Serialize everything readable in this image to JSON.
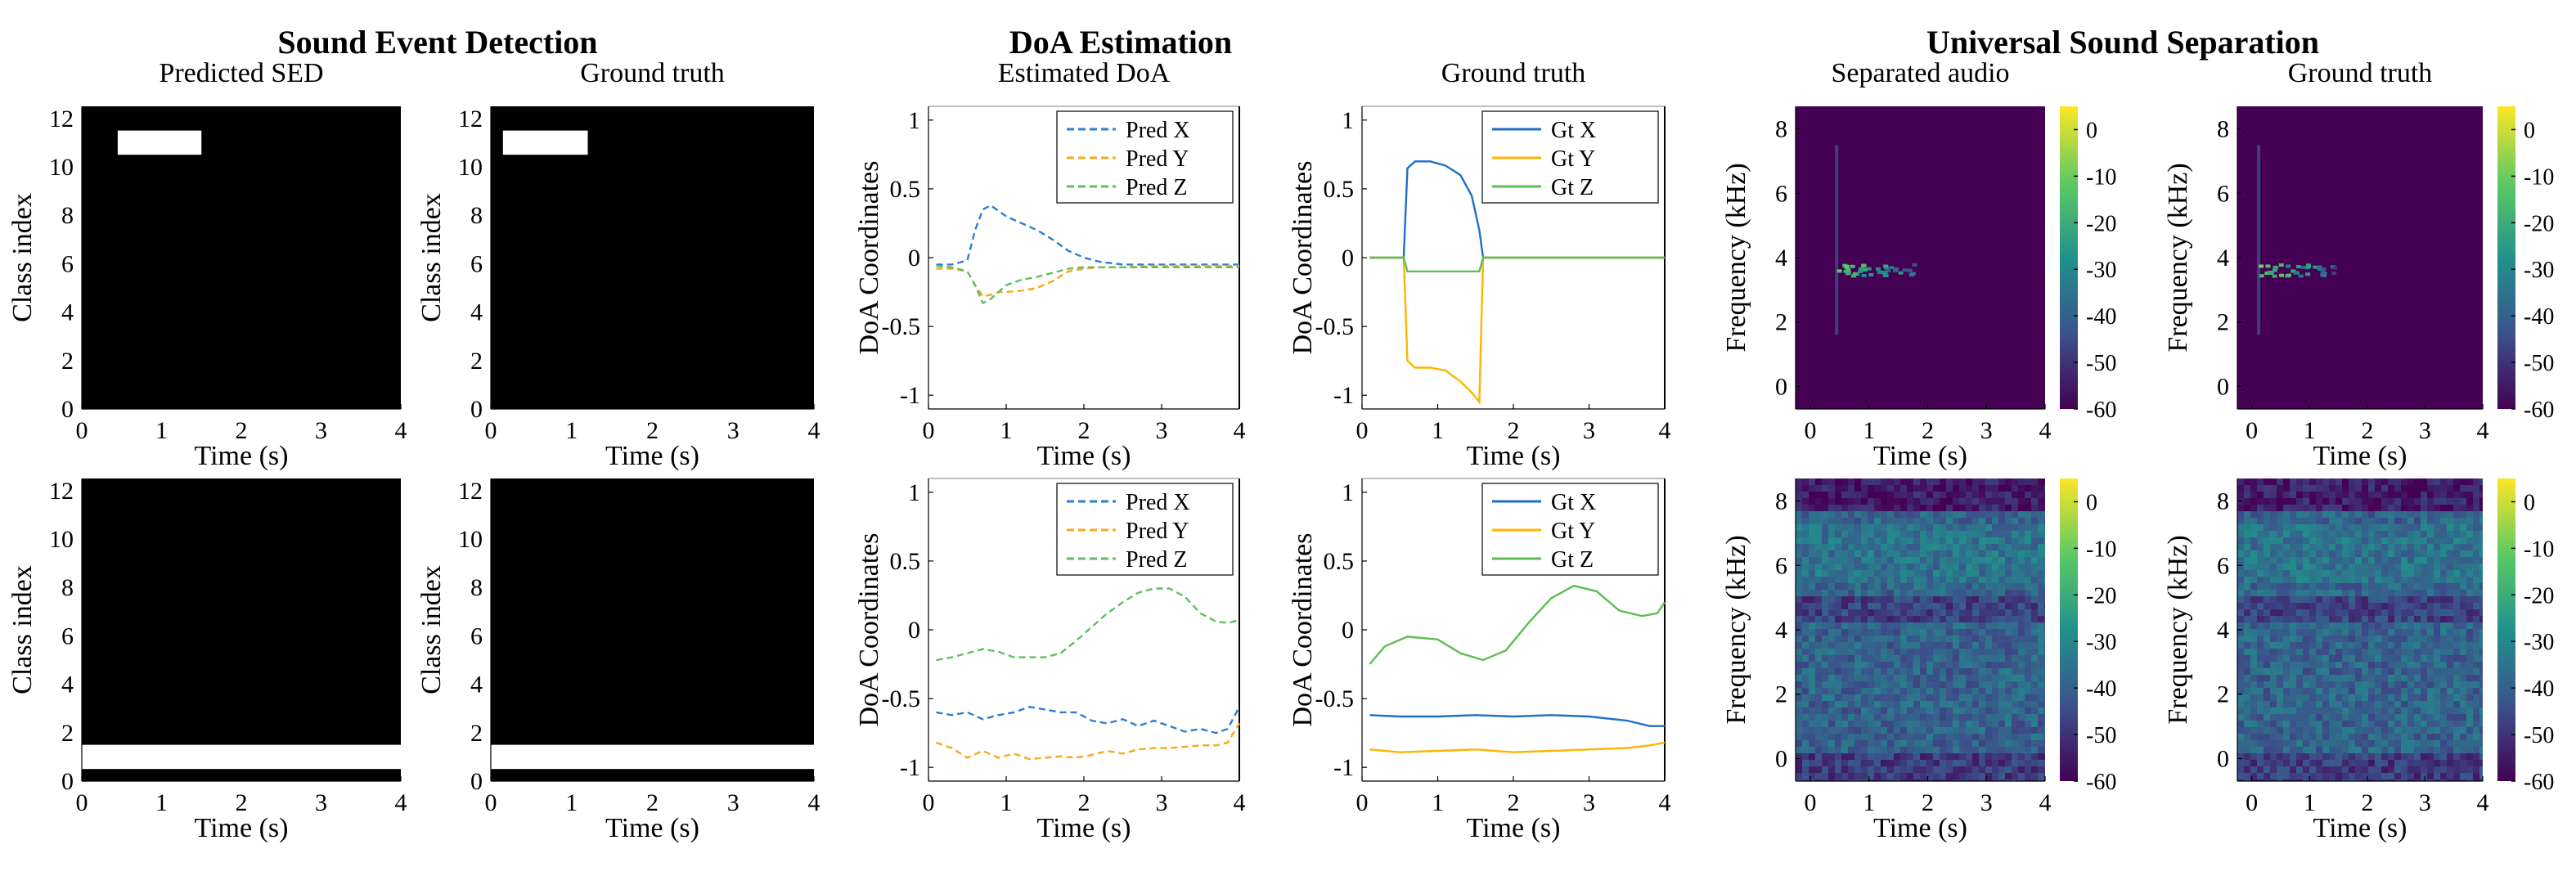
{
  "section_titles": [
    "Sound Event Detection",
    "DoA Estimation",
    "Universal Sound Separation"
  ],
  "colors": {
    "x": "#2e7dd1",
    "y": "#f7a81b",
    "z": "#5fbf5f",
    "gt_x": "#1f6fc5",
    "gt_y": "#ffb400",
    "gt_z": "#5cbf52",
    "colormap": [
      "#440154",
      "#3b528b",
      "#21918c",
      "#5ec962",
      "#fde725"
    ]
  },
  "chart_data": [
    {
      "type": "heatmap",
      "title": "Predicted SED",
      "xlabel": "Time (s)",
      "ylabel": "Class index",
      "xlim": [
        0,
        4
      ],
      "ylim": [
        0,
        12.5
      ],
      "xticks": [
        0,
        1,
        2,
        3,
        4
      ],
      "yticks": [
        0,
        2,
        4,
        6,
        8,
        10,
        12
      ],
      "background": "black",
      "active_color": "white",
      "events": [
        {
          "class": 11,
          "start": 0.45,
          "end": 1.5
        }
      ]
    },
    {
      "type": "heatmap",
      "title": "Ground truth",
      "xlabel": "Time (s)",
      "ylabel": "Class index",
      "xlim": [
        0,
        4
      ],
      "ylim": [
        0,
        12.5
      ],
      "xticks": [
        0,
        1,
        2,
        3,
        4
      ],
      "yticks": [
        0,
        2,
        4,
        6,
        8,
        10,
        12
      ],
      "background": "black",
      "active_color": "white",
      "events": [
        {
          "class": 11,
          "start": 0.15,
          "end": 1.2
        }
      ]
    },
    {
      "type": "line",
      "title": "Estimated DoA",
      "xlabel": "Time (s)",
      "ylabel": "DoA Coordinates",
      "xlim": [
        0,
        4
      ],
      "ylim": [
        -1.1,
        1.1
      ],
      "xticks": [
        0,
        1,
        2,
        3,
        4
      ],
      "yticks": [
        -1,
        -0.5,
        0,
        0.5,
        1
      ],
      "ytick_labels": [
        "-1",
        "-0.5",
        "0",
        "0.5",
        "1"
      ],
      "legend_position": "top-right",
      "series": [
        {
          "name": "Pred X",
          "dash": "dashed",
          "x": [
            0.1,
            0.3,
            0.5,
            0.6,
            0.7,
            0.8,
            0.9,
            1.0,
            1.2,
            1.4,
            1.6,
            1.8,
            2.0,
            2.2,
            2.5,
            3.0,
            3.5,
            4.0
          ],
          "y": [
            -0.05,
            -0.05,
            -0.02,
            0.2,
            0.35,
            0.38,
            0.34,
            0.3,
            0.25,
            0.2,
            0.13,
            0.05,
            0.0,
            -0.03,
            -0.05,
            -0.05,
            -0.05,
            -0.05
          ]
        },
        {
          "name": "Pred Y",
          "dash": "dashed",
          "x": [
            0.1,
            0.3,
            0.5,
            0.6,
            0.7,
            0.8,
            0.9,
            1.0,
            1.2,
            1.4,
            1.6,
            1.8,
            2.0,
            2.2,
            2.5,
            3.0,
            3.5,
            4.0
          ],
          "y": [
            -0.08,
            -0.08,
            -0.1,
            -0.2,
            -0.28,
            -0.27,
            -0.25,
            -0.25,
            -0.24,
            -0.22,
            -0.17,
            -0.1,
            -0.08,
            -0.07,
            -0.07,
            -0.06,
            -0.06,
            -0.06
          ]
        },
        {
          "name": "Pred Z",
          "dash": "dashed",
          "x": [
            0.1,
            0.3,
            0.5,
            0.6,
            0.7,
            0.8,
            0.9,
            1.0,
            1.2,
            1.4,
            1.6,
            1.8,
            2.0,
            2.2,
            2.5,
            3.0,
            3.5,
            4.0
          ],
          "y": [
            -0.06,
            -0.07,
            -0.1,
            -0.2,
            -0.33,
            -0.3,
            -0.25,
            -0.2,
            -0.16,
            -0.14,
            -0.11,
            -0.08,
            -0.07,
            -0.07,
            -0.07,
            -0.07,
            -0.07,
            -0.07
          ]
        }
      ]
    },
    {
      "type": "line",
      "title": "Ground truth",
      "xlabel": "Time (s)",
      "ylabel": "DoA Coordinates",
      "xlim": [
        0,
        4
      ],
      "ylim": [
        -1.1,
        1.1
      ],
      "xticks": [
        0,
        1,
        2,
        3,
        4
      ],
      "yticks": [
        -1,
        -0.5,
        0,
        0.5,
        1
      ],
      "ytick_labels": [
        "-1",
        "-0.5",
        "0",
        "0.5",
        "1"
      ],
      "legend_position": "top-right",
      "series": [
        {
          "name": "Gt X",
          "dash": "solid",
          "x": [
            0.1,
            0.55,
            0.6,
            0.7,
            0.9,
            1.1,
            1.3,
            1.45,
            1.55,
            1.6,
            2.0,
            3.0,
            4.0
          ],
          "y": [
            0.0,
            0.0,
            0.65,
            0.7,
            0.7,
            0.67,
            0.6,
            0.45,
            0.2,
            0.0,
            0.0,
            0.0,
            0.0
          ]
        },
        {
          "name": "Gt Y",
          "dash": "solid",
          "x": [
            0.1,
            0.55,
            0.6,
            0.7,
            0.9,
            1.1,
            1.3,
            1.45,
            1.55,
            1.6,
            2.0,
            3.0,
            4.0
          ],
          "y": [
            0.0,
            0.0,
            -0.75,
            -0.8,
            -0.8,
            -0.82,
            -0.9,
            -0.98,
            -1.05,
            0.0,
            0.0,
            0.0,
            0.0
          ]
        },
        {
          "name": "Gt Z",
          "dash": "solid",
          "x": [
            0.1,
            0.55,
            0.6,
            1.55,
            1.6,
            2.0,
            3.0,
            4.0
          ],
          "y": [
            0.0,
            0.0,
            -0.1,
            -0.1,
            0.0,
            0.0,
            0.0,
            0.0
          ]
        }
      ]
    },
    {
      "type": "heatmap",
      "title": "Separated audio",
      "xlabel": "Time (s)",
      "ylabel": "Frequency (kHz)",
      "xlim": [
        -0.25,
        4
      ],
      "ylim": [
        -0.7,
        8.7
      ],
      "xticks": [
        0,
        1,
        2,
        3,
        4
      ],
      "yticks": [
        0,
        2,
        4,
        6,
        8
      ],
      "colorbar": {
        "range": [
          -60,
          5
        ],
        "ticks": [
          0,
          -10,
          -20,
          -30,
          -40,
          -50,
          -60
        ]
      },
      "content": "transient"
    },
    {
      "type": "heatmap",
      "title": "Ground truth",
      "xlabel": "Time (s)",
      "ylabel": "Frequency (kHz)",
      "xlim": [
        -0.25,
        4
      ],
      "ylim": [
        -0.7,
        8.7
      ],
      "xticks": [
        0,
        1,
        2,
        3,
        4
      ],
      "yticks": [
        0,
        2,
        4,
        6,
        8
      ],
      "colorbar": {
        "range": [
          -60,
          5
        ],
        "ticks": [
          0,
          -10,
          -20,
          -30,
          -40,
          -50,
          -60
        ]
      },
      "content": "transient"
    },
    {
      "type": "heatmap",
      "title": "",
      "xlabel": "Time (s)",
      "ylabel": "Class index",
      "xlim": [
        0,
        4
      ],
      "ylim": [
        0,
        12.5
      ],
      "xticks": [
        0,
        1,
        2,
        3,
        4
      ],
      "yticks": [
        0,
        2,
        4,
        6,
        8,
        10,
        12
      ],
      "background": "black",
      "active_color": "white",
      "events": [
        {
          "class": 1,
          "start": 0.0,
          "end": 4.0
        }
      ]
    },
    {
      "type": "heatmap",
      "title": "",
      "xlabel": "Time (s)",
      "ylabel": "Class index",
      "xlim": [
        0,
        4
      ],
      "ylim": [
        0,
        12.5
      ],
      "xticks": [
        0,
        1,
        2,
        3,
        4
      ],
      "yticks": [
        0,
        2,
        4,
        6,
        8,
        10,
        12
      ],
      "background": "black",
      "active_color": "white",
      "events": [
        {
          "class": 1,
          "start": 0.0,
          "end": 4.0
        }
      ]
    },
    {
      "type": "line",
      "title": "",
      "xlabel": "Time (s)",
      "ylabel": "DoA Coordinates",
      "xlim": [
        0,
        4
      ],
      "ylim": [
        -1.1,
        1.1
      ],
      "xticks": [
        0,
        1,
        2,
        3,
        4
      ],
      "yticks": [
        -1,
        -0.5,
        0,
        0.5,
        1
      ],
      "ytick_labels": [
        "-1",
        "-0.5",
        "0",
        "0.5",
        "1"
      ],
      "legend_position": "top-right",
      "series": [
        {
          "name": "Pred X",
          "dash": "dashed",
          "x": [
            0.1,
            0.3,
            0.5,
            0.7,
            0.9,
            1.1,
            1.3,
            1.5,
            1.7,
            1.9,
            2.1,
            2.3,
            2.5,
            2.7,
            2.9,
            3.1,
            3.3,
            3.5,
            3.7,
            3.85,
            4.0
          ],
          "y": [
            -0.6,
            -0.62,
            -0.6,
            -0.65,
            -0.62,
            -0.6,
            -0.56,
            -0.58,
            -0.6,
            -0.6,
            -0.66,
            -0.68,
            -0.65,
            -0.7,
            -0.66,
            -0.7,
            -0.74,
            -0.72,
            -0.75,
            -0.72,
            -0.56
          ]
        },
        {
          "name": "Pred Y",
          "dash": "dashed",
          "x": [
            0.1,
            0.3,
            0.5,
            0.7,
            0.9,
            1.1,
            1.3,
            1.5,
            1.7,
            1.9,
            2.1,
            2.3,
            2.5,
            2.7,
            2.9,
            3.1,
            3.3,
            3.5,
            3.7,
            3.85,
            4.0
          ],
          "y": [
            -0.82,
            -0.86,
            -0.93,
            -0.88,
            -0.93,
            -0.9,
            -0.94,
            -0.93,
            -0.92,
            -0.93,
            -0.91,
            -0.88,
            -0.9,
            -0.87,
            -0.86,
            -0.86,
            -0.85,
            -0.84,
            -0.84,
            -0.82,
            -0.68
          ]
        },
        {
          "name": "Pred Z",
          "dash": "dashed",
          "x": [
            0.1,
            0.3,
            0.5,
            0.7,
            0.9,
            1.1,
            1.3,
            1.5,
            1.7,
            1.9,
            2.1,
            2.3,
            2.5,
            2.7,
            2.9,
            3.1,
            3.3,
            3.5,
            3.7,
            3.85,
            4.0
          ],
          "y": [
            -0.22,
            -0.2,
            -0.17,
            -0.14,
            -0.16,
            -0.2,
            -0.2,
            -0.2,
            -0.17,
            -0.08,
            0.02,
            0.12,
            0.2,
            0.27,
            0.3,
            0.3,
            0.24,
            0.12,
            0.06,
            0.05,
            0.07
          ]
        }
      ]
    },
    {
      "type": "line",
      "title": "",
      "xlabel": "Time (s)",
      "ylabel": "DoA Coordinates",
      "xlim": [
        0,
        4
      ],
      "ylim": [
        -1.1,
        1.1
      ],
      "xticks": [
        0,
        1,
        2,
        3,
        4
      ],
      "yticks": [
        -1,
        -0.5,
        0,
        0.5,
        1
      ],
      "ytick_labels": [
        "-1",
        "-0.5",
        "0",
        "0.5",
        "1"
      ],
      "legend_position": "top-right",
      "series": [
        {
          "name": "Gt X",
          "dash": "solid",
          "x": [
            0.1,
            0.5,
            1.0,
            1.5,
            2.0,
            2.5,
            3.0,
            3.5,
            3.8,
            4.0
          ],
          "y": [
            -0.62,
            -0.63,
            -0.63,
            -0.62,
            -0.63,
            -0.62,
            -0.63,
            -0.66,
            -0.7,
            -0.7
          ]
        },
        {
          "name": "Gt Y",
          "dash": "solid",
          "x": [
            0.1,
            0.5,
            1.0,
            1.5,
            2.0,
            2.5,
            3.0,
            3.5,
            3.8,
            4.0
          ],
          "y": [
            -0.87,
            -0.89,
            -0.88,
            -0.87,
            -0.89,
            -0.88,
            -0.87,
            -0.86,
            -0.84,
            -0.82
          ]
        },
        {
          "name": "Gt Z",
          "dash": "solid",
          "x": [
            0.1,
            0.3,
            0.6,
            1.0,
            1.3,
            1.6,
            1.9,
            2.2,
            2.5,
            2.8,
            3.1,
            3.4,
            3.7,
            3.9,
            4.0
          ],
          "y": [
            -0.25,
            -0.12,
            -0.05,
            -0.07,
            -0.17,
            -0.22,
            -0.15,
            0.05,
            0.23,
            0.32,
            0.28,
            0.14,
            0.1,
            0.12,
            0.2
          ]
        }
      ]
    },
    {
      "type": "heatmap",
      "title": "",
      "xlabel": "Time (s)",
      "ylabel": "Frequency (kHz)",
      "xlim": [
        -0.25,
        4
      ],
      "ylim": [
        -0.7,
        8.7
      ],
      "xticks": [
        0,
        1,
        2,
        3,
        4
      ],
      "yticks": [
        0,
        2,
        4,
        6,
        8
      ],
      "colorbar": {
        "range": [
          -60,
          5
        ],
        "ticks": [
          0,
          -10,
          -20,
          -30,
          -40,
          -50,
          -60
        ]
      },
      "content": "broadband"
    },
    {
      "type": "heatmap",
      "title": "",
      "xlabel": "Time (s)",
      "ylabel": "Frequency (kHz)",
      "xlim": [
        -0.25,
        4
      ],
      "ylim": [
        -0.7,
        8.7
      ],
      "xticks": [
        0,
        1,
        2,
        3,
        4
      ],
      "yticks": [
        0,
        2,
        4,
        6,
        8
      ],
      "colorbar": {
        "range": [
          -60,
          5
        ],
        "ticks": [
          0,
          -10,
          -20,
          -30,
          -40,
          -50,
          -60
        ]
      },
      "content": "broadband"
    }
  ]
}
